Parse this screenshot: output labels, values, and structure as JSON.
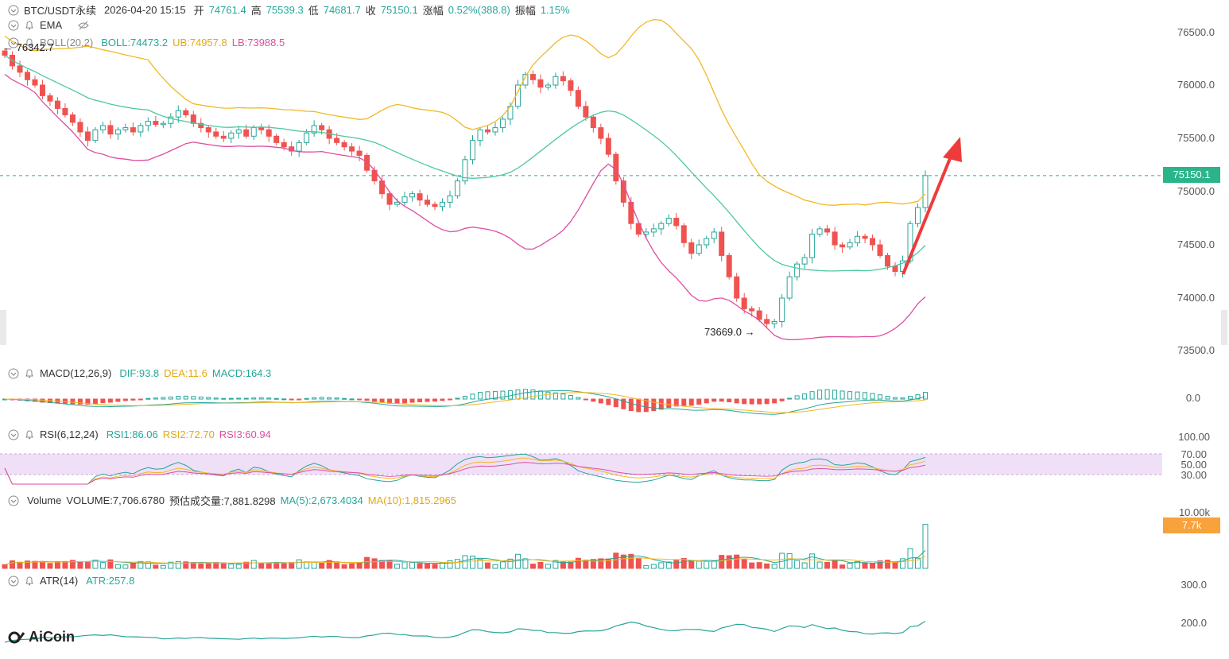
{
  "header": {
    "symbol": "BTC/USDT永续",
    "datetime": "2026-04-20 15:15",
    "open_label": "开",
    "open": "74761.4",
    "high_label": "高",
    "high": "75539.3",
    "low_label": "低",
    "low": "74681.7",
    "close_label": "收",
    "close": "75150.1",
    "change_label": "涨幅",
    "change": "0.52%(388.8)",
    "amplitude_label": "振幅",
    "amplitude": "1.15%"
  },
  "ema_label": "EMA",
  "boll": {
    "label": "BOLL(20,2)",
    "boll": "BOLL:74473.2",
    "ub": "UB:74957.8",
    "lb": "LB:73988.5"
  },
  "macd": {
    "label": "MACD(12,26,9)",
    "dif": "DIF:93.8",
    "dea": "DEA:11.6",
    "macd": "MACD:164.3"
  },
  "rsi": {
    "label": "RSI(6,12,24)",
    "rsi1": "RSI1:86.06",
    "rsi2": "RSI2:72.70",
    "rsi3": "RSI3:60.94"
  },
  "volume": {
    "label": "Volume",
    "volume": "VOLUME:7,706.6780",
    "est": "预估成交量:7,881.8298",
    "ma5": "MA(5):2,673.4034",
    "ma10": "MA(10):1,815.2965"
  },
  "atr": {
    "label": "ATR(14)",
    "atr": "ATR:257.8"
  },
  "annotations": {
    "max_price": "← 76342.7",
    "min_price": "73669.0 →"
  },
  "price_axis": [
    "76500.0",
    "76000.0",
    "75500.0",
    "75000.0",
    "74500.0",
    "74000.0",
    "73500.0"
  ],
  "macd_axis": [
    "0.0"
  ],
  "rsi_axis": [
    "100.00",
    "70.00",
    "50.00",
    "30.00"
  ],
  "volume_axis": [
    "10.00k"
  ],
  "atr_axis": [
    "300.0",
    "200.0"
  ],
  "current_price_tag": "75150.1",
  "current_volume_tag": "7.7k",
  "logo": "AiCoin",
  "colors": {
    "up": "#26a69a",
    "down": "#ef5350",
    "boll_mid": "#4cc8a0",
    "boll_ub": "#f2b824",
    "boll_lb": "#de4ea0",
    "rsi_band": "#efe0f7"
  },
  "chart_data": {
    "type": "candlestick",
    "ylim": [
      73400,
      76650
    ],
    "key_points": [
      {
        "label": "max",
        "value": 76342.7
      },
      {
        "label": "min",
        "value": 73669.0
      },
      {
        "label": "last_close",
        "value": 75150.1
      }
    ],
    "close_series": [
      76280,
      76180,
      76120,
      76050,
      76000,
      75900,
      75850,
      75780,
      75720,
      75650,
      75560,
      75480,
      75580,
      75620,
      75540,
      75580,
      75600,
      75560,
      75620,
      75660,
      75630,
      75640,
      75700,
      75760,
      75720,
      75640,
      75600,
      75560,
      75520,
      75500,
      75550,
      75580,
      75520,
      75600,
      75580,
      75520,
      75460,
      75420,
      75380,
      75460,
      75550,
      75620,
      75580,
      75500,
      75460,
      75420,
      75380,
      75340,
      75200,
      75100,
      74980,
      74880,
      74900,
      74950,
      74980,
      74920,
      74880,
      74860,
      74900,
      74960,
      75100,
      75300,
      75480,
      75580,
      75560,
      75600,
      75680,
      75800,
      76000,
      76100,
      76050,
      75980,
      76000,
      76080,
      76040,
      75950,
      75800,
      75700,
      75600,
      75500,
      75350,
      75100,
      74900,
      74700,
      74600,
      74620,
      74650,
      74700,
      74750,
      74680,
      74520,
      74420,
      74500,
      74560,
      74620,
      74400,
      74200,
      74000,
      73900,
      73880,
      73800,
      73760,
      73780,
      74000,
      74200,
      74320,
      74380,
      74600,
      74650,
      74620,
      74500,
      74480,
      74520,
      74580,
      74560,
      74500,
      74400,
      74300,
      74250,
      74350,
      74700,
      74850,
      75150
    ]
  }
}
